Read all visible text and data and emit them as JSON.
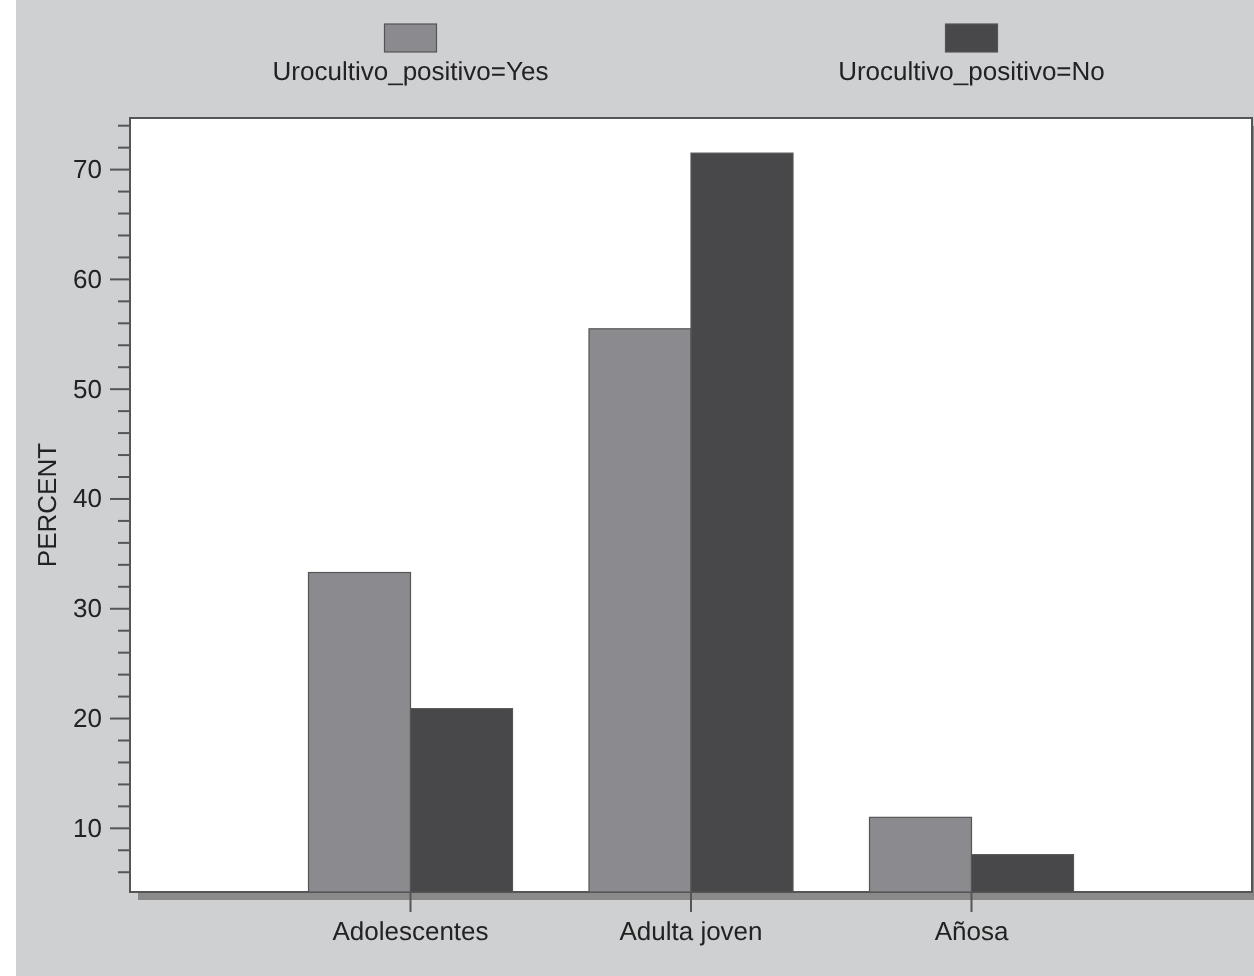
{
  "chart_data": {
    "type": "bar",
    "ylabel": "PERCENT",
    "categories": [
      "Adolescentes",
      "Adulta joven",
      "Añosa"
    ],
    "series": [
      {
        "name": "Urocultivo_positivo=Yes",
        "color": "#8b8b8f",
        "values": [
          33.3,
          55.5,
          11.0
        ]
      },
      {
        "name": "Urocultivo_positivo=No",
        "color": "#48484b",
        "values": [
          20.9,
          71.5,
          7.6
        ]
      }
    ],
    "ylim": [
      4.2,
      74.7
    ],
    "yticks": [
      {
        "value": 6,
        "label": null
      },
      {
        "value": 8,
        "label": null
      },
      10,
      {
        "value": 12,
        "label": null
      },
      {
        "value": 14,
        "label": null
      },
      {
        "value": 16,
        "label": null
      },
      {
        "value": 18,
        "label": null
      },
      20,
      {
        "value": 22,
        "label": null
      },
      {
        "value": 24,
        "label": null
      },
      {
        "value": 26,
        "label": null
      },
      {
        "value": 28,
        "label": null
      },
      30,
      {
        "value": 32,
        "label": null
      },
      {
        "value": 34,
        "label": null
      },
      {
        "value": 36,
        "label": null
      },
      {
        "value": 38,
        "label": null
      },
      40,
      {
        "value": 42,
        "label": null
      },
      {
        "value": 44,
        "label": null
      },
      {
        "value": 46,
        "label": null
      },
      {
        "value": 48,
        "label": null
      },
      50,
      {
        "value": 52,
        "label": null
      },
      {
        "value": 54,
        "label": null
      },
      {
        "value": 56,
        "label": null
      },
      {
        "value": 58,
        "label": null
      },
      60,
      {
        "value": 62,
        "label": null
      },
      {
        "value": 64,
        "label": null
      },
      {
        "value": 66,
        "label": null
      },
      {
        "value": 68,
        "label": null
      },
      70,
      {
        "value": 72,
        "label": null
      },
      {
        "value": 74,
        "label": null
      }
    ],
    "grid": false,
    "legend": "top"
  }
}
